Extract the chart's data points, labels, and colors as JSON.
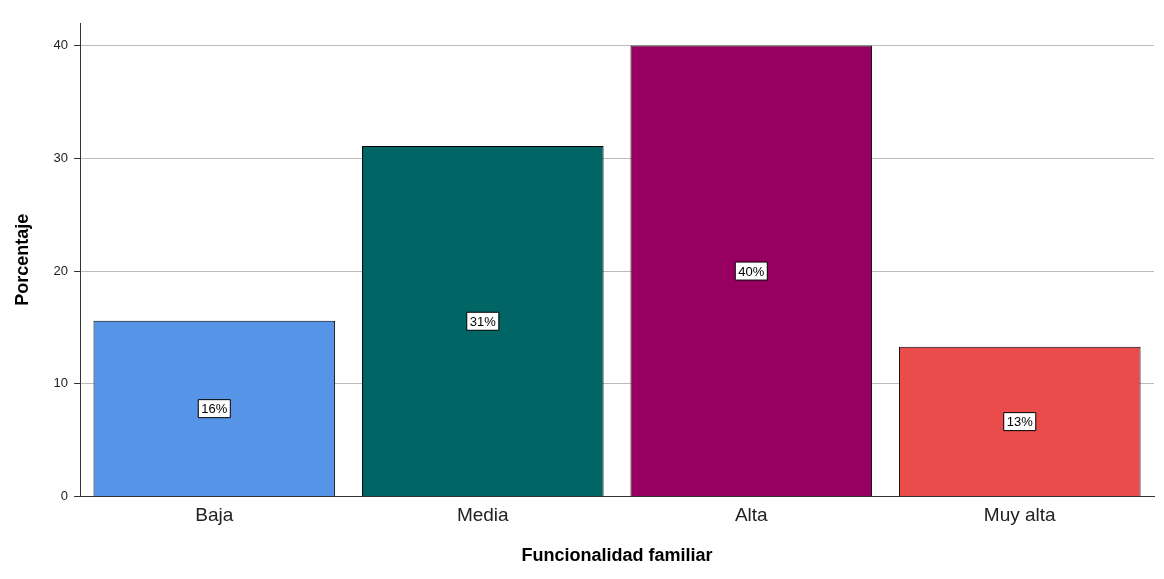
{
  "chart_data": {
    "type": "bar",
    "xlabel": "Funcionalidad familiar",
    "ylabel": "Porcentaje",
    "categories": [
      "Baja",
      "Media",
      "Alta",
      "Muy alta"
    ],
    "values": [
      15.6,
      31.1,
      40.0,
      13.3
    ],
    "value_labels": [
      "16%",
      "31%",
      "40%",
      "13%"
    ],
    "colors": [
      "#5594e6",
      "#006564",
      "#970061",
      "#ea4b4b"
    ],
    "ylim": [
      0,
      42
    ],
    "yticks": [
      0,
      10,
      20,
      30,
      40
    ],
    "grid": "y"
  }
}
